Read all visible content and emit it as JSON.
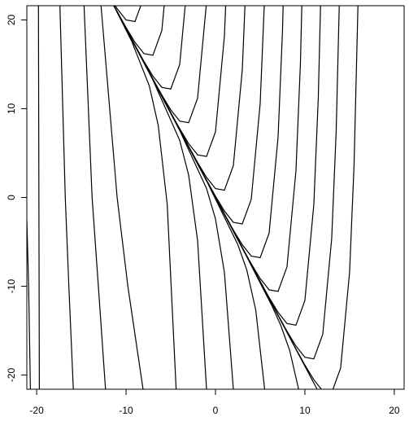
{
  "chart_data": {
    "type": "line",
    "color": "#000000",
    "xlim": [
      -21.1,
      21.1
    ],
    "ylim": [
      -21.6,
      21.6
    ],
    "xticks": [
      -20,
      -10,
      0,
      10,
      20
    ],
    "yticks": [
      -20,
      -10,
      0,
      10,
      20
    ],
    "series": [
      {
        "x": [
          -21.1,
          -20.9,
          -20.7
        ],
        "y": [
          -2.5,
          -10,
          -21.6
        ]
      },
      {
        "x": [
          -19.8,
          -19.75,
          -19.7
        ],
        "y": [
          21.6,
          0,
          -21.6
        ]
      },
      {
        "x": [
          -17.4,
          -16.8,
          -16.4,
          -15.9
        ],
        "y": [
          21.6,
          0,
          -10,
          -21.6
        ]
      },
      {
        "x": [
          -14.7,
          -13.8,
          -13.1,
          -12.3
        ],
        "y": [
          21.6,
          0,
          -10,
          -21.6
        ]
      },
      {
        "x": [
          -12.8,
          -11.0,
          -9.8,
          -8.1
        ],
        "y": [
          21.6,
          0,
          -10,
          -21.6
        ]
      },
      {
        "x": [
          -11.4,
          -9.4,
          -7.4,
          -6.4,
          -5.4,
          -4.4
        ],
        "y": [
          21.66,
          17.66,
          12.57,
          8.11,
          -0.76,
          -21.6
        ]
      },
      {
        "x": [
          -11.4,
          -7,
          -4,
          -3,
          -2,
          -1
        ],
        "y": [
          21.66,
          13.24,
          6.43,
          2.52,
          -4.85,
          -21.6
        ]
      },
      {
        "x": [
          -11.4,
          -4,
          -1,
          0,
          1,
          2
        ],
        "y": [
          21.66,
          7.56,
          1.01,
          -2.41,
          -8.45,
          -21.6
        ]
      },
      {
        "x": [
          -11.4,
          -1,
          2.5,
          3.5,
          4.5,
          5.5
        ],
        "y": [
          21.66,
          1.88,
          -5.31,
          -8.16,
          -12.65,
          -21.6
        ]
      },
      {
        "x": [
          -11.4,
          3,
          6.3,
          7.3,
          8.3,
          9.3
        ],
        "y": [
          21.66,
          -5.7,
          -12.17,
          -14.4,
          -17.22,
          -21.6
        ]
      },
      {
        "x": [
          -11.4,
          11.4
        ],
        "y": [
          21.66,
          -21.66
        ]
      },
      {
        "x": [
          -11.4,
          -11,
          -10,
          -9,
          -8
        ],
        "y": [
          21.91,
          21.27,
          20,
          19.82,
          22.59
        ]
      },
      {
        "x": [
          -11.4,
          -11,
          -10,
          -9,
          -8,
          -7,
          -6,
          -5
        ],
        "y": [
          21.7,
          20.95,
          19.14,
          17.47,
          16.2,
          16.02,
          18.79,
          29.59
        ]
      },
      {
        "x": [
          -11.4,
          -9,
          -8,
          -7,
          -6,
          -5,
          -4,
          -3
        ],
        "y": [
          21.66,
          17.15,
          15.34,
          13.67,
          12.4,
          12.22,
          14.99,
          25.79
        ]
      },
      {
        "x": [
          -11.4,
          -9,
          -7,
          -6,
          -5,
          -4,
          -3,
          -2,
          -1
        ],
        "y": [
          21.66,
          17.1,
          13.35,
          11.54,
          9.87,
          8.6,
          8.42,
          11.19,
          21.99
        ]
      },
      {
        "x": [
          -11.4,
          -5,
          -4,
          -3,
          -2,
          -1,
          0,
          1,
          1.5
        ],
        "y": [
          21.66,
          9.55,
          7.74,
          6.07,
          4.8,
          4.62,
          7.39,
          18.19,
          30.27
        ]
      },
      {
        "x": [
          -11.4,
          -3,
          -2,
          -1,
          0,
          1,
          2,
          3,
          3.5
        ],
        "y": [
          21.66,
          5.75,
          3.94,
          2.27,
          1,
          0.82,
          3.59,
          14.39,
          26.47
        ]
      },
      {
        "x": [
          -11.4,
          -1,
          0,
          1,
          2,
          3,
          4,
          5,
          5.5
        ],
        "y": [
          21.66,
          1.95,
          0.14,
          -1.53,
          -2.8,
          -2.98,
          -0.21,
          10.59,
          22.67
        ]
      },
      {
        "x": [
          -11.4,
          1,
          2,
          3,
          4,
          5,
          6,
          7,
          7.5,
          8
        ],
        "y": [
          21.66,
          -1.85,
          -3.67,
          -5.33,
          -6.6,
          -6.78,
          -4.01,
          6.79,
          18.87,
          39.4
        ]
      },
      {
        "x": [
          -11.4,
          3,
          4,
          5,
          6,
          7,
          8,
          9,
          9.5,
          10
        ],
        "y": [
          21.66,
          -5.65,
          -7.47,
          -9.13,
          -10.4,
          -10.58,
          -7.81,
          2.99,
          15.07,
          35.6
        ]
      },
      {
        "x": [
          -11.4,
          5,
          6,
          7,
          8,
          9,
          10,
          11,
          11.5,
          12
        ],
        "y": [
          21.66,
          -9.45,
          -11.27,
          -12.93,
          -14.2,
          -14.38,
          -11.61,
          -0.81,
          11.27,
          31.8
        ]
      },
      {
        "x": [
          -11.4,
          7,
          8,
          9,
          10,
          11,
          12,
          13,
          13.5,
          14
        ],
        "y": [
          21.66,
          -13.25,
          -15.07,
          -16.73,
          -18,
          -18.18,
          -15.41,
          -4.61,
          7.47,
          28
        ]
      },
      {
        "x": [
          -11.4,
          9,
          10,
          11,
          12,
          13,
          14,
          15,
          15.5,
          16
        ],
        "y": [
          21.66,
          -17.05,
          -18.87,
          -20.53,
          -21.8,
          -21.98,
          -19.21,
          -8.41,
          3.67,
          24.2
        ]
      }
    ]
  }
}
